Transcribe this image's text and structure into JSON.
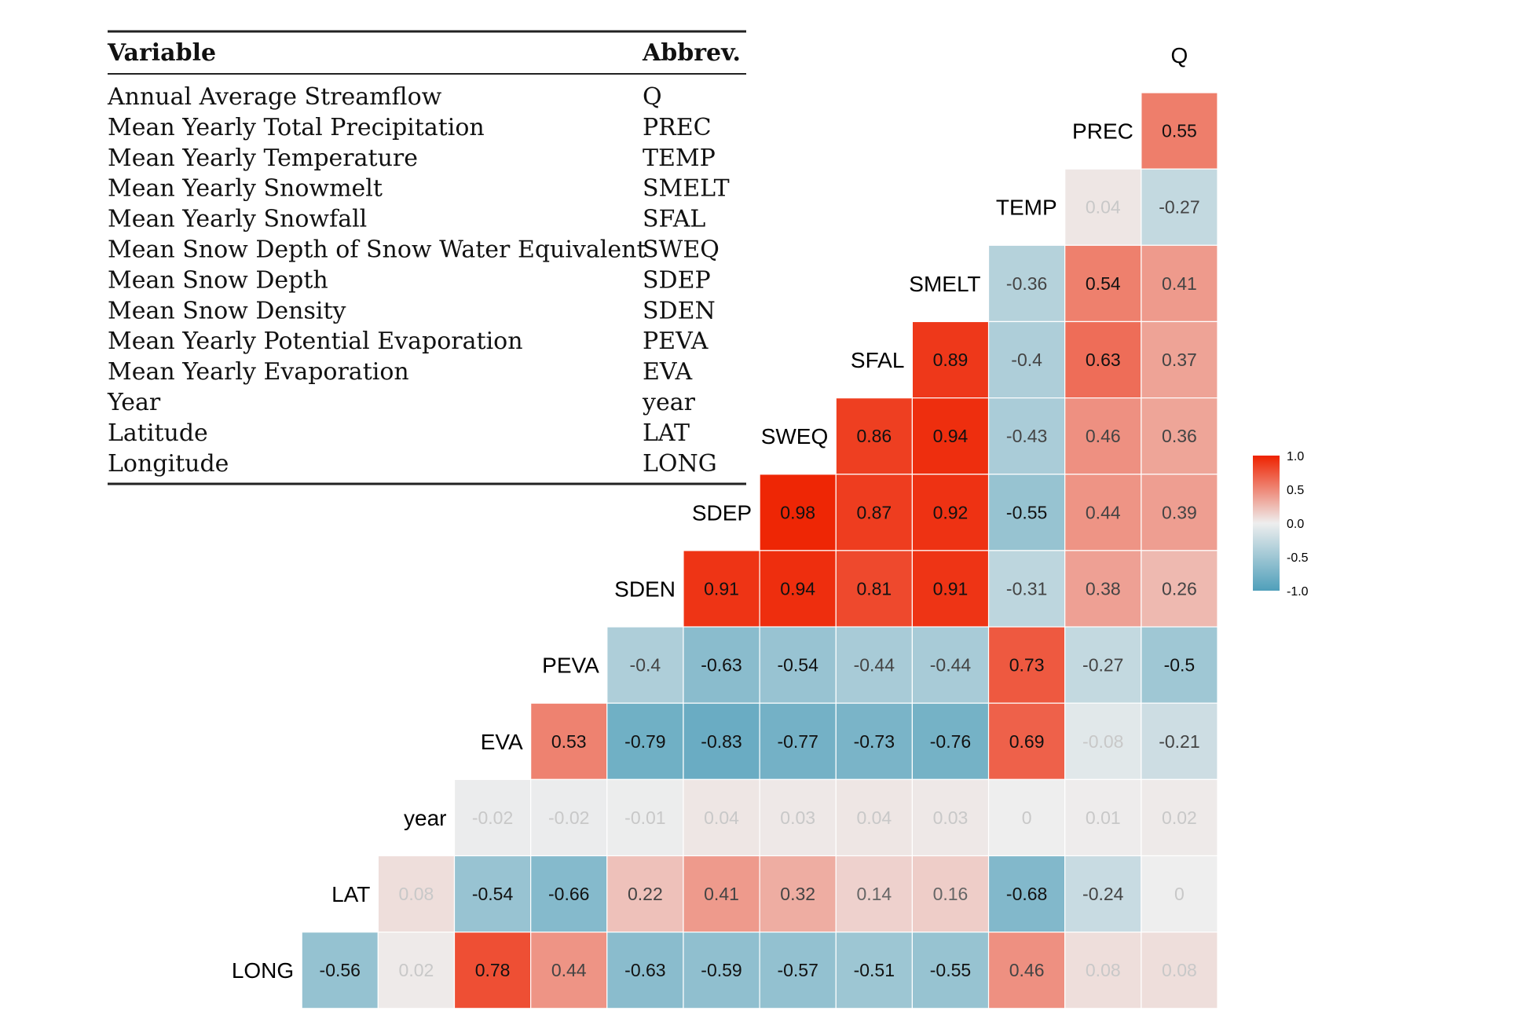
{
  "table": {
    "header_variable": "Variable",
    "header_abbrev": "Abbrev.",
    "rows": [
      {
        "variable": "Annual Average Streamflow",
        "abbrev": "Q"
      },
      {
        "variable": "Mean Yearly Total Precipitation",
        "abbrev": "PREC"
      },
      {
        "variable": "Mean Yearly Temperature",
        "abbrev": "TEMP"
      },
      {
        "variable": "Mean Yearly Snowmelt",
        "abbrev": "SMELT"
      },
      {
        "variable": "Mean Yearly Snowfall",
        "abbrev": "SFAL"
      },
      {
        "variable": "Mean Snow Depth of Snow Water Equivalent",
        "abbrev": "SWEQ"
      },
      {
        "variable": "Mean Snow Depth",
        "abbrev": "SDEP"
      },
      {
        "variable": "Mean Snow Density",
        "abbrev": "SDEN"
      },
      {
        "variable": "Mean Yearly Potential Evaporation",
        "abbrev": "PEVA"
      },
      {
        "variable": "Mean Yearly Evaporation",
        "abbrev": "EVA"
      },
      {
        "variable": "Year",
        "abbrev": "year"
      },
      {
        "variable": "Latitude",
        "abbrev": "LAT"
      },
      {
        "variable": "Longitude",
        "abbrev": "LONG"
      }
    ]
  },
  "chart_data": {
    "type": "heatmap",
    "variables": [
      "Q",
      "PREC",
      "TEMP",
      "SMELT",
      "SFAL",
      "SWEQ",
      "SDEP",
      "SDEN",
      "PEVA",
      "EVA",
      "year",
      "LAT",
      "LONG"
    ],
    "rows": [
      {
        "label": "PREC",
        "values": [
          "0.55"
        ]
      },
      {
        "label": "TEMP",
        "values": [
          "0.04",
          "-0.27"
        ]
      },
      {
        "label": "SMELT",
        "values": [
          "-0.36",
          "0.54",
          "0.41"
        ]
      },
      {
        "label": "SFAL",
        "values": [
          "0.89",
          "-0.4",
          "0.63",
          "0.37"
        ]
      },
      {
        "label": "SWEQ",
        "values": [
          "0.86",
          "0.94",
          "-0.43",
          "0.46",
          "0.36"
        ]
      },
      {
        "label": "SDEP",
        "values": [
          "0.98",
          "0.87",
          "0.92",
          "-0.55",
          "0.44",
          "0.39"
        ]
      },
      {
        "label": "SDEN",
        "values": [
          "0.91",
          "0.94",
          "0.81",
          "0.91",
          "-0.31",
          "0.38",
          "0.26"
        ]
      },
      {
        "label": "PEVA",
        "values": [
          "-0.4",
          "-0.63",
          "-0.54",
          "-0.44",
          "-0.44",
          "0.73",
          "-0.27",
          "-0.5"
        ]
      },
      {
        "label": "EVA",
        "values": [
          "0.53",
          "-0.79",
          "-0.83",
          "-0.77",
          "-0.73",
          "-0.76",
          "0.69",
          "-0.08",
          "-0.21"
        ]
      },
      {
        "label": "year",
        "values": [
          "-0.02",
          "-0.02",
          "-0.01",
          "0.04",
          "0.03",
          "0.04",
          "0.03",
          "0",
          "0.01",
          "0.02"
        ]
      },
      {
        "label": "LAT",
        "values": [
          "0.08",
          "-0.54",
          "-0.66",
          "0.22",
          "0.41",
          "0.32",
          "0.14",
          "0.16",
          "-0.68",
          "-0.24",
          "0"
        ]
      },
      {
        "label": "LONG",
        "values": [
          "-0.56",
          "0.02",
          "0.78",
          "0.44",
          "-0.63",
          "-0.59",
          "-0.57",
          "-0.51",
          "-0.55",
          "0.46",
          "0.08",
          "0.08"
        ]
      }
    ],
    "legend": {
      "ticks": [
        "1.0",
        "0.5",
        "0.0",
        "-0.5",
        "-1.0"
      ],
      "range": [
        -1,
        1
      ],
      "colors": {
        "low": "#4f9fba",
        "mid": "#eeeeee",
        "high": "#ee2200"
      }
    }
  }
}
